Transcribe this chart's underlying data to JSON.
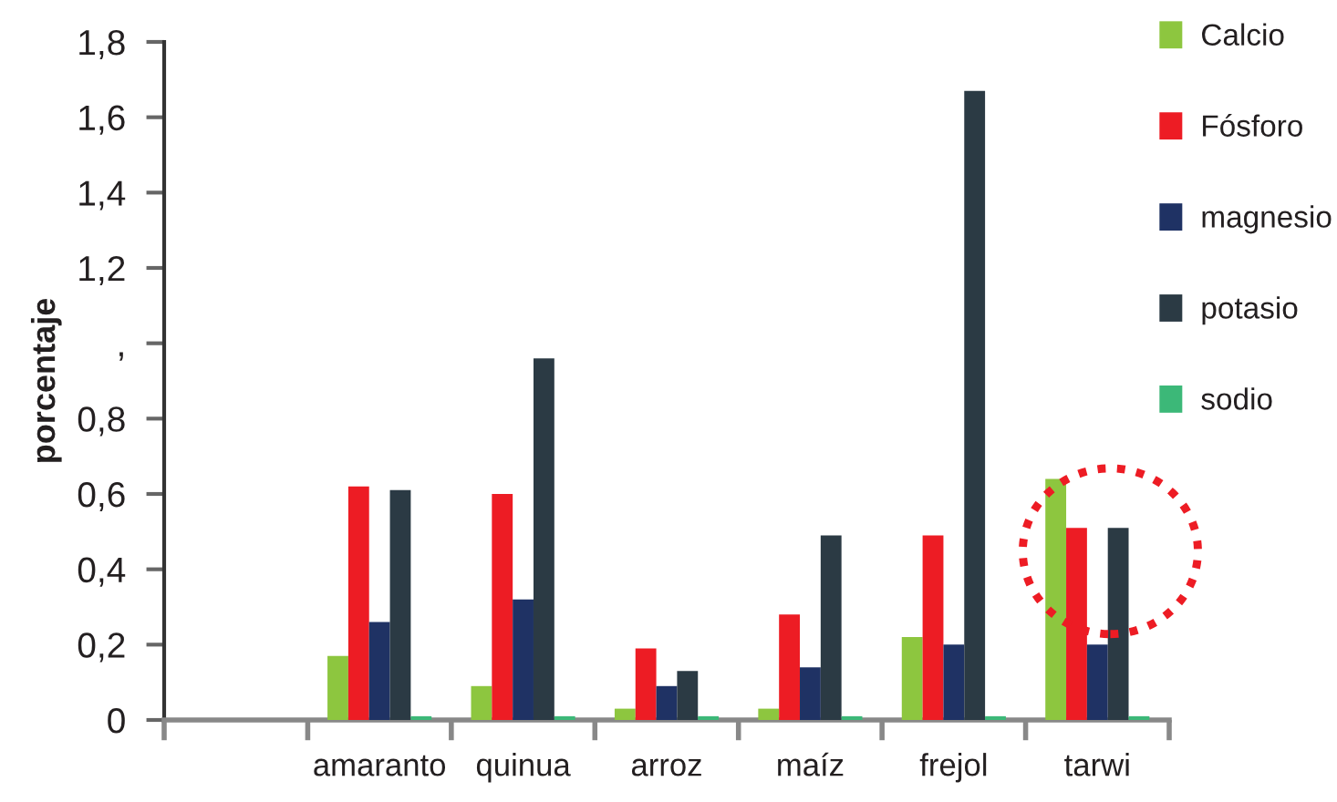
{
  "chart_data": {
    "type": "bar",
    "ylabel": "porcentaje",
    "categories": [
      null,
      "amaranto",
      "quinua",
      "arroz",
      "maíz",
      "frejol",
      "tarwi"
    ],
    "series": [
      {
        "name": "Calcio",
        "color": "#8dc63f",
        "values": [
          null,
          0.17,
          0.09,
          0.03,
          0.03,
          0.22,
          0.64
        ]
      },
      {
        "name": "Fósforo",
        "color": "#ed1c24",
        "values": [
          null,
          0.62,
          0.6,
          0.19,
          0.28,
          0.49,
          0.51
        ]
      },
      {
        "name": "magnesio",
        "color": "#1f3264",
        "values": [
          null,
          0.26,
          0.32,
          0.09,
          0.14,
          0.2,
          0.2
        ]
      },
      {
        "name": "potasio",
        "color": "#2b3a44",
        "values": [
          null,
          0.61,
          0.96,
          0.13,
          0.49,
          1.67,
          0.51
        ]
      },
      {
        "name": "sodio",
        "color": "#3cb878",
        "values": [
          null,
          0.01,
          0.01,
          0.01,
          0.01,
          0.01,
          0.01
        ]
      }
    ],
    "ylim": [
      0,
      1.8
    ],
    "yticks": [
      0,
      {
        "value": 0.2,
        "label": "0,2"
      },
      {
        "value": 0.4,
        "label": "0,4"
      },
      {
        "value": 0.6,
        "label": "0,6"
      },
      {
        "value": 0.8,
        "label": "0,8"
      },
      {
        "value": 1,
        "label": ","
      },
      {
        "value": 1.2,
        "label": "1,2"
      },
      {
        "value": 1.4,
        "label": "1,4"
      },
      {
        "value": 1.6,
        "label": "1,6"
      },
      {
        "value": 1.8,
        "label": "1,8"
      }
    ],
    "legend": "top right"
  }
}
